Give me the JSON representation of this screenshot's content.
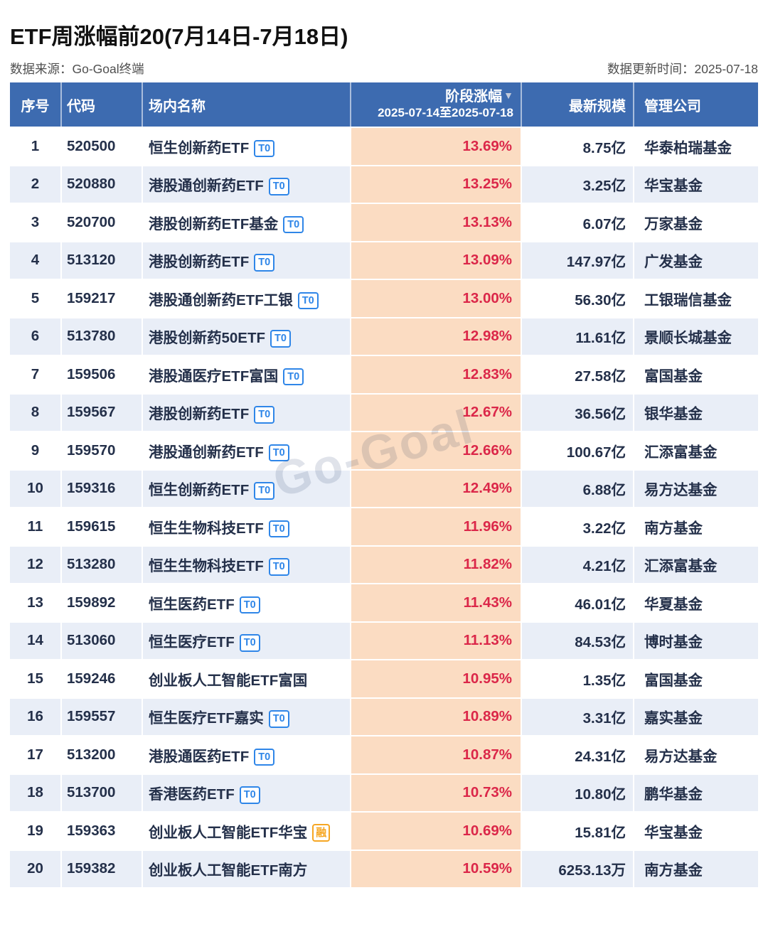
{
  "page": {
    "title": "ETF周涨幅前20(7月14日-7月18日)",
    "source": "数据来源：Go-Goal终端",
    "update_time": "数据更新时间：2025-07-18",
    "watermark": "Go-Goal"
  },
  "colors": {
    "header_bg": "#3D6BB0",
    "zebra_row_bg": "#E9EEF7",
    "pct_column_bg": "#FBDCC2",
    "pct_text": "#DB2749",
    "body_text": "#24304A",
    "t0_badge": "#2F86E8",
    "rong_badge": "#F6A623",
    "meta_text": "#4F4F4F"
  },
  "table": {
    "headers": {
      "rank": "序号",
      "code": "代码",
      "name": "场内名称",
      "pct": "阶段涨幅",
      "sort_icon": "▼",
      "pct_range": "2025-07-14至2025-07-18",
      "scale": "最新规模",
      "company": "管理公司"
    },
    "rows": [
      {
        "rank": "1",
        "code": "520500",
        "name": "恒生创新药ETF",
        "badge": "T0",
        "pct": "13.69%",
        "scale": "8.75亿",
        "company": "华泰柏瑞基金"
      },
      {
        "rank": "2",
        "code": "520880",
        "name": "港股通创新药ETF",
        "badge": "T0",
        "pct": "13.25%",
        "scale": "3.25亿",
        "company": "华宝基金"
      },
      {
        "rank": "3",
        "code": "520700",
        "name": "港股创新药ETF基金",
        "badge": "T0",
        "pct": "13.13%",
        "scale": "6.07亿",
        "company": "万家基金"
      },
      {
        "rank": "4",
        "code": "513120",
        "name": "港股创新药ETF",
        "badge": "T0",
        "pct": "13.09%",
        "scale": "147.97亿",
        "company": "广发基金"
      },
      {
        "rank": "5",
        "code": "159217",
        "name": "港股通创新药ETF工银",
        "badge": "T0",
        "pct": "13.00%",
        "scale": "56.30亿",
        "company": "工银瑞信基金"
      },
      {
        "rank": "6",
        "code": "513780",
        "name": "港股创新药50ETF",
        "badge": "T0",
        "pct": "12.98%",
        "scale": "11.61亿",
        "company": "景顺长城基金"
      },
      {
        "rank": "7",
        "code": "159506",
        "name": "港股通医疗ETF富国",
        "badge": "T0",
        "pct": "12.83%",
        "scale": "27.58亿",
        "company": "富国基金"
      },
      {
        "rank": "8",
        "code": "159567",
        "name": "港股创新药ETF",
        "badge": "T0",
        "pct": "12.67%",
        "scale": "36.56亿",
        "company": "银华基金"
      },
      {
        "rank": "9",
        "code": "159570",
        "name": "港股通创新药ETF",
        "badge": "T0",
        "pct": "12.66%",
        "scale": "100.67亿",
        "company": "汇添富基金"
      },
      {
        "rank": "10",
        "code": "159316",
        "name": "恒生创新药ETF",
        "badge": "T0",
        "pct": "12.49%",
        "scale": "6.88亿",
        "company": "易方达基金"
      },
      {
        "rank": "11",
        "code": "159615",
        "name": "恒生生物科技ETF",
        "badge": "T0",
        "pct": "11.96%",
        "scale": "3.22亿",
        "company": "南方基金"
      },
      {
        "rank": "12",
        "code": "513280",
        "name": "恒生生物科技ETF",
        "badge": "T0",
        "pct": "11.82%",
        "scale": "4.21亿",
        "company": "汇添富基金"
      },
      {
        "rank": "13",
        "code": "159892",
        "name": "恒生医药ETF",
        "badge": "T0",
        "pct": "11.43%",
        "scale": "46.01亿",
        "company": "华夏基金"
      },
      {
        "rank": "14",
        "code": "513060",
        "name": "恒生医疗ETF",
        "badge": "T0",
        "pct": "11.13%",
        "scale": "84.53亿",
        "company": "博时基金"
      },
      {
        "rank": "15",
        "code": "159246",
        "name": "创业板人工智能ETF富国",
        "badge": null,
        "pct": "10.95%",
        "scale": "1.35亿",
        "company": "富国基金"
      },
      {
        "rank": "16",
        "code": "159557",
        "name": "恒生医疗ETF嘉实",
        "badge": "T0",
        "pct": "10.89%",
        "scale": "3.31亿",
        "company": "嘉实基金"
      },
      {
        "rank": "17",
        "code": "513200",
        "name": "港股通医药ETF",
        "badge": "T0",
        "pct": "10.87%",
        "scale": "24.31亿",
        "company": "易方达基金"
      },
      {
        "rank": "18",
        "code": "513700",
        "name": "香港医药ETF",
        "badge": "T0",
        "pct": "10.73%",
        "scale": "10.80亿",
        "company": "鹏华基金"
      },
      {
        "rank": "19",
        "code": "159363",
        "name": "创业板人工智能ETF华宝",
        "badge": "融",
        "pct": "10.69%",
        "scale": "15.81亿",
        "company": "华宝基金"
      },
      {
        "rank": "20",
        "code": "159382",
        "name": "创业板人工智能ETF南方",
        "badge": null,
        "pct": "10.59%",
        "scale": "6253.13万",
        "company": "南方基金"
      }
    ]
  }
}
